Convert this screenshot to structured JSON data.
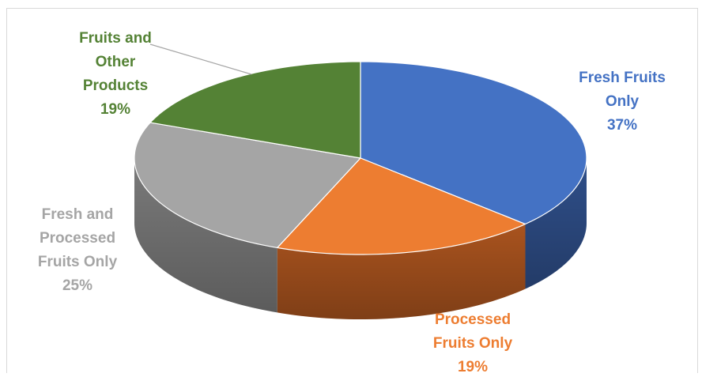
{
  "chart_data": {
    "type": "pie",
    "style": "3d",
    "title": "",
    "slices": [
      {
        "label": "Fresh Fruits Only",
        "value": 37,
        "color": "#4472c4",
        "side_color": "#2f4f8a",
        "label_lines": [
          "Fresh Fruits",
          "Only",
          "37%"
        ]
      },
      {
        "label": "Processed Fruits Only",
        "value": 19,
        "color": "#ed7d31",
        "side_color": "#a9531e",
        "label_lines": [
          "Processed",
          "Fruits Only",
          "19%"
        ]
      },
      {
        "label": "Fresh and Processed Fruits Only",
        "value": 25,
        "color": "#a5a5a5",
        "side_color": "#7a7a7a",
        "label_lines": [
          "Fresh and",
          "Processed",
          "Fruits Only",
          "25%"
        ]
      },
      {
        "label": "Fruits and Other Products",
        "value": 19,
        "color": "#548235",
        "side_color": "#3a5a24",
        "label_lines": [
          "Fruits and",
          "Other",
          "Products",
          "19%"
        ]
      }
    ],
    "legend": "none",
    "data_labels": "category name and percentage"
  }
}
